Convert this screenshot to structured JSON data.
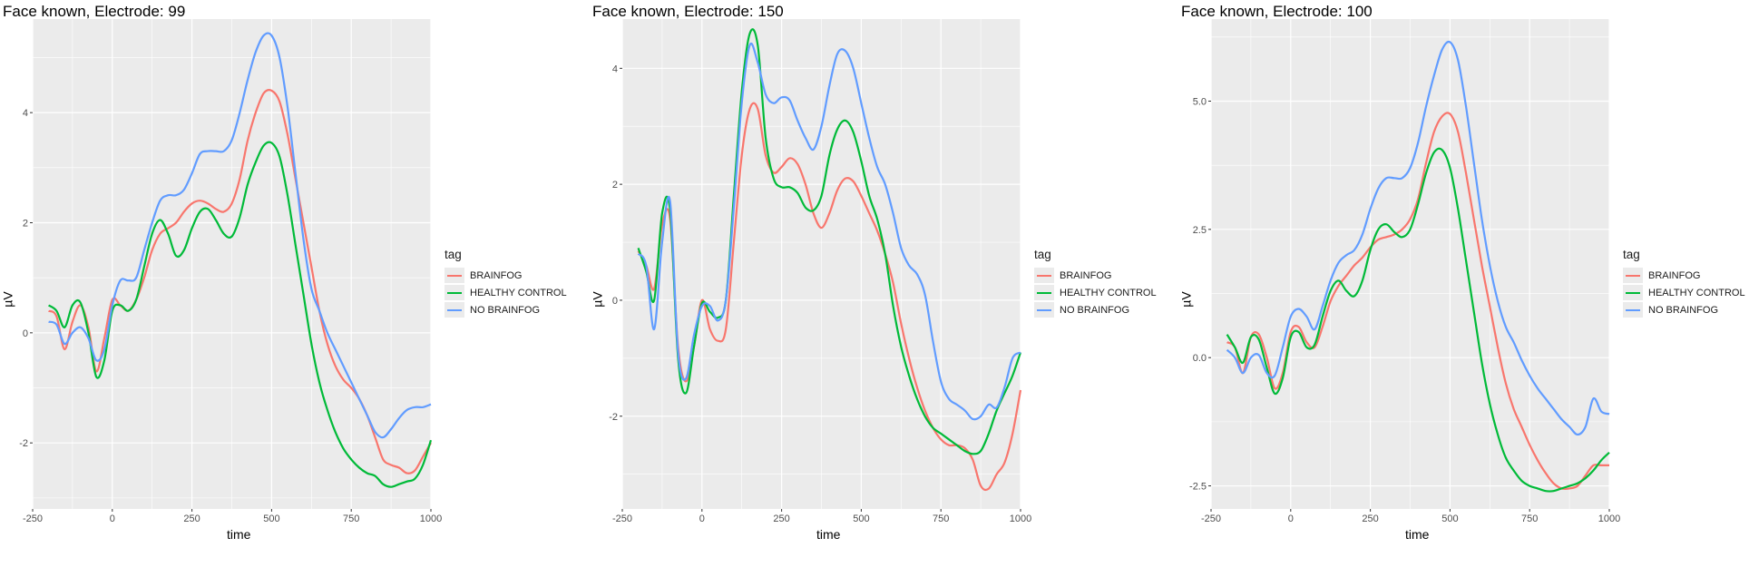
{
  "chart_data": [
    {
      "type": "line",
      "title": "Face known, Electrode: 99",
      "xlabel": "time",
      "ylabel": "µV",
      "xlim": [
        -250,
        1000
      ],
      "ylim": [
        -3.2,
        5.7
      ],
      "xticks": [
        -250,
        0,
        250,
        500,
        750,
        1000
      ],
      "yticks": [
        -2,
        0,
        2,
        4
      ],
      "grid": true,
      "legend_title": "tag",
      "legend_position": "right",
      "series": [
        {
          "name": "BRAINFOG",
          "color": "#F8766D",
          "x": [
            -200,
            -175,
            -150,
            -125,
            -100,
            -75,
            -50,
            -25,
            0,
            25,
            50,
            75,
            100,
            125,
            150,
            175,
            200,
            225,
            250,
            275,
            300,
            325,
            350,
            375,
            400,
            425,
            450,
            475,
            500,
            525,
            550,
            575,
            600,
            625,
            650,
            675,
            700,
            725,
            750,
            775,
            800,
            825,
            850,
            875,
            900,
            925,
            950,
            975,
            1000
          ],
          "y": [
            0.4,
            0.3,
            -0.3,
            0.2,
            0.5,
            0.1,
            -0.7,
            -0.1,
            0.6,
            0.5,
            0.4,
            0.6,
            1.0,
            1.5,
            1.8,
            1.9,
            2.0,
            2.2,
            2.35,
            2.4,
            2.35,
            2.25,
            2.2,
            2.35,
            2.8,
            3.5,
            4.0,
            4.35,
            4.4,
            4.2,
            3.6,
            2.8,
            2.0,
            1.2,
            0.4,
            -0.2,
            -0.6,
            -0.85,
            -1.0,
            -1.2,
            -1.5,
            -1.9,
            -2.3,
            -2.4,
            -2.45,
            -2.55,
            -2.5,
            -2.25,
            -2.0
          ]
        },
        {
          "name": "HEALTHY CONTROL",
          "color": "#00BA38",
          "x": [
            -200,
            -175,
            -150,
            -125,
            -100,
            -75,
            -50,
            -25,
            0,
            25,
            50,
            75,
            100,
            125,
            150,
            175,
            200,
            225,
            250,
            275,
            300,
            325,
            350,
            375,
            400,
            425,
            450,
            475,
            500,
            525,
            550,
            575,
            600,
            625,
            650,
            675,
            700,
            725,
            750,
            775,
            800,
            825,
            850,
            875,
            900,
            925,
            950,
            975,
            1000
          ],
          "y": [
            0.5,
            0.4,
            0.1,
            0.5,
            0.55,
            0.0,
            -0.8,
            -0.5,
            0.4,
            0.5,
            0.4,
            0.6,
            1.2,
            1.8,
            2.05,
            1.8,
            1.4,
            1.5,
            1.9,
            2.2,
            2.25,
            2.05,
            1.8,
            1.75,
            2.1,
            2.7,
            3.1,
            3.4,
            3.45,
            3.2,
            2.5,
            1.6,
            0.7,
            -0.2,
            -0.9,
            -1.4,
            -1.8,
            -2.1,
            -2.3,
            -2.45,
            -2.55,
            -2.6,
            -2.75,
            -2.8,
            -2.75,
            -2.7,
            -2.65,
            -2.4,
            -1.95
          ]
        },
        {
          "name": "NO BRAINFOG",
          "color": "#619CFF",
          "x": [
            -200,
            -175,
            -150,
            -125,
            -100,
            -75,
            -50,
            -25,
            0,
            25,
            50,
            75,
            100,
            125,
            150,
            175,
            200,
            225,
            250,
            275,
            300,
            325,
            350,
            375,
            400,
            425,
            450,
            475,
            500,
            525,
            550,
            575,
            600,
            625,
            650,
            675,
            700,
            725,
            750,
            775,
            800,
            825,
            850,
            875,
            900,
            925,
            950,
            975,
            1000
          ],
          "y": [
            0.2,
            0.15,
            -0.2,
            0.0,
            0.1,
            -0.1,
            -0.5,
            -0.3,
            0.5,
            0.95,
            0.95,
            1.0,
            1.5,
            2.0,
            2.4,
            2.5,
            2.5,
            2.6,
            2.9,
            3.25,
            3.3,
            3.3,
            3.3,
            3.5,
            4.0,
            4.6,
            5.1,
            5.4,
            5.4,
            5.0,
            4.1,
            2.9,
            1.7,
            0.8,
            0.4,
            0.0,
            -0.3,
            -0.6,
            -0.9,
            -1.2,
            -1.5,
            -1.8,
            -1.9,
            -1.75,
            -1.55,
            -1.4,
            -1.35,
            -1.35,
            -1.3
          ]
        }
      ]
    },
    {
      "type": "line",
      "title": "Face known, Electrode: 150",
      "xlabel": "time",
      "ylabel": "µV",
      "xlim": [
        -250,
        1000
      ],
      "ylim": [
        -3.6,
        4.85
      ],
      "xticks": [
        -250,
        0,
        250,
        500,
        750,
        1000
      ],
      "yticks": [
        -2,
        0,
        2,
        4
      ],
      "grid": true,
      "legend_title": "tag",
      "legend_position": "right",
      "series": [
        {
          "name": "BRAINFOG",
          "color": "#F8766D",
          "x": [
            -200,
            -175,
            -150,
            -125,
            -100,
            -75,
            -50,
            -25,
            0,
            25,
            50,
            75,
            100,
            125,
            150,
            175,
            200,
            225,
            250,
            275,
            300,
            325,
            350,
            375,
            400,
            425,
            450,
            475,
            500,
            525,
            550,
            575,
            600,
            625,
            650,
            675,
            700,
            725,
            750,
            775,
            800,
            825,
            850,
            875,
            900,
            925,
            950,
            975,
            1000
          ],
          "y": [
            0.85,
            0.6,
            0.2,
            1.3,
            1.4,
            -0.8,
            -1.4,
            -0.8,
            0.0,
            -0.5,
            -0.7,
            -0.5,
            1.0,
            2.5,
            3.3,
            3.3,
            2.5,
            2.2,
            2.3,
            2.45,
            2.35,
            2.0,
            1.5,
            1.25,
            1.5,
            1.9,
            2.1,
            2.05,
            1.8,
            1.5,
            1.2,
            0.8,
            0.3,
            -0.4,
            -1.0,
            -1.5,
            -1.9,
            -2.2,
            -2.4,
            -2.5,
            -2.5,
            -2.55,
            -2.75,
            -3.2,
            -3.25,
            -3.0,
            -2.8,
            -2.3,
            -1.55
          ]
        },
        {
          "name": "HEALTHY CONTROL",
          "color": "#00BA38",
          "x": [
            -200,
            -175,
            -150,
            -125,
            -100,
            -75,
            -50,
            -25,
            0,
            25,
            50,
            75,
            100,
            125,
            150,
            175,
            200,
            225,
            250,
            275,
            300,
            325,
            350,
            375,
            400,
            425,
            450,
            475,
            500,
            525,
            550,
            575,
            600,
            625,
            650,
            675,
            700,
            725,
            750,
            775,
            800,
            825,
            850,
            875,
            900,
            925,
            950,
            975,
            1000
          ],
          "y": [
            0.9,
            0.5,
            0.0,
            1.5,
            1.55,
            -1.0,
            -1.6,
            -0.8,
            -0.05,
            -0.2,
            -0.3,
            0.0,
            1.8,
            3.6,
            4.6,
            4.4,
            2.8,
            2.1,
            1.95,
            1.95,
            1.85,
            1.6,
            1.55,
            1.8,
            2.5,
            2.95,
            3.1,
            2.9,
            2.4,
            1.8,
            1.4,
            0.8,
            -0.1,
            -0.8,
            -1.3,
            -1.7,
            -2.0,
            -2.2,
            -2.3,
            -2.4,
            -2.5,
            -2.6,
            -2.65,
            -2.6,
            -2.3,
            -1.9,
            -1.6,
            -1.3,
            -0.9
          ]
        },
        {
          "name": "NO BRAINFOG",
          "color": "#619CFF",
          "x": [
            -200,
            -175,
            -150,
            -125,
            -100,
            -75,
            -50,
            -25,
            0,
            25,
            50,
            75,
            100,
            125,
            150,
            175,
            200,
            225,
            250,
            275,
            300,
            325,
            350,
            375,
            400,
            425,
            450,
            475,
            500,
            525,
            550,
            575,
            600,
            625,
            650,
            675,
            700,
            725,
            750,
            775,
            800,
            825,
            850,
            875,
            900,
            925,
            950,
            975,
            1000
          ],
          "y": [
            0.8,
            0.6,
            -0.5,
            1.0,
            1.7,
            -0.9,
            -1.35,
            -0.6,
            -0.1,
            -0.1,
            -0.35,
            0.0,
            1.6,
            3.4,
            4.4,
            4.1,
            3.55,
            3.4,
            3.5,
            3.45,
            3.1,
            2.8,
            2.6,
            3.0,
            3.7,
            4.25,
            4.3,
            4.0,
            3.4,
            2.8,
            2.3,
            2.0,
            1.5,
            0.9,
            0.6,
            0.45,
            0.1,
            -0.7,
            -1.4,
            -1.7,
            -1.8,
            -1.9,
            -2.05,
            -2.0,
            -1.8,
            -1.85,
            -1.5,
            -1.0,
            -0.9
          ]
        }
      ]
    },
    {
      "type": "line",
      "title": "Face known, Electrode: 100",
      "xlabel": "time",
      "ylabel": "µV",
      "xlim": [
        -250,
        1000
      ],
      "ylim": [
        -2.95,
        6.6
      ],
      "xticks": [
        -250,
        0,
        250,
        500,
        750,
        1000
      ],
      "yticks": [
        -2.5,
        0.0,
        2.5,
        5.0
      ],
      "grid": true,
      "legend_title": "tag",
      "legend_position": "right",
      "series": [
        {
          "name": "BRAINFOG",
          "color": "#F8766D",
          "x": [
            -200,
            -175,
            -150,
            -125,
            -100,
            -75,
            -50,
            -25,
            0,
            25,
            50,
            75,
            100,
            125,
            150,
            175,
            200,
            225,
            250,
            275,
            300,
            325,
            350,
            375,
            400,
            425,
            450,
            475,
            500,
            525,
            550,
            575,
            600,
            625,
            650,
            675,
            700,
            725,
            750,
            775,
            800,
            825,
            850,
            875,
            900,
            925,
            950,
            975,
            1000
          ],
          "y": [
            0.3,
            0.2,
            -0.3,
            0.4,
            0.45,
            0.0,
            -0.6,
            -0.3,
            0.5,
            0.6,
            0.3,
            0.2,
            0.6,
            1.1,
            1.4,
            1.6,
            1.8,
            1.95,
            2.15,
            2.3,
            2.35,
            2.4,
            2.5,
            2.7,
            3.1,
            3.8,
            4.4,
            4.7,
            4.75,
            4.4,
            3.6,
            2.7,
            1.8,
            1.0,
            0.2,
            -0.5,
            -1.0,
            -1.35,
            -1.7,
            -2.0,
            -2.25,
            -2.45,
            -2.55,
            -2.55,
            -2.5,
            -2.3,
            -2.1,
            -2.1,
            -2.1
          ]
        },
        {
          "name": "HEALTHY CONTROL",
          "color": "#00BA38",
          "x": [
            -200,
            -175,
            -150,
            -125,
            -100,
            -75,
            -50,
            -25,
            0,
            25,
            50,
            75,
            100,
            125,
            150,
            175,
            200,
            225,
            250,
            275,
            300,
            325,
            350,
            375,
            400,
            425,
            450,
            475,
            500,
            525,
            550,
            575,
            600,
            625,
            650,
            675,
            700,
            725,
            750,
            775,
            800,
            825,
            850,
            875,
            900,
            925,
            950,
            975,
            1000
          ],
          "y": [
            0.45,
            0.2,
            -0.1,
            0.4,
            0.35,
            -0.2,
            -0.7,
            -0.4,
            0.4,
            0.5,
            0.2,
            0.25,
            0.8,
            1.3,
            1.5,
            1.3,
            1.2,
            1.5,
            2.1,
            2.5,
            2.6,
            2.45,
            2.35,
            2.5,
            3.0,
            3.6,
            4.0,
            4.05,
            3.7,
            2.9,
            1.9,
            0.9,
            -0.1,
            -0.9,
            -1.5,
            -1.95,
            -2.2,
            -2.4,
            -2.5,
            -2.55,
            -2.6,
            -2.6,
            -2.55,
            -2.5,
            -2.45,
            -2.35,
            -2.2,
            -2.0,
            -1.85
          ]
        },
        {
          "name": "NO BRAINFOG",
          "color": "#619CFF",
          "x": [
            -200,
            -175,
            -150,
            -125,
            -100,
            -75,
            -50,
            -25,
            0,
            25,
            50,
            75,
            100,
            125,
            150,
            175,
            200,
            225,
            250,
            275,
            300,
            325,
            350,
            375,
            400,
            425,
            450,
            475,
            500,
            525,
            550,
            575,
            600,
            625,
            650,
            675,
            700,
            725,
            750,
            775,
            800,
            825,
            850,
            875,
            900,
            925,
            950,
            975,
            1000
          ],
          "y": [
            0.15,
            0.0,
            -0.3,
            0.0,
            0.05,
            -0.3,
            -0.35,
            0.2,
            0.8,
            0.95,
            0.8,
            0.55,
            1.0,
            1.5,
            1.85,
            2.0,
            2.1,
            2.4,
            2.9,
            3.3,
            3.5,
            3.5,
            3.5,
            3.7,
            4.2,
            4.9,
            5.5,
            6.0,
            6.15,
            5.8,
            4.9,
            3.8,
            2.7,
            1.8,
            1.1,
            0.6,
            0.3,
            -0.05,
            -0.35,
            -0.6,
            -0.8,
            -1.0,
            -1.2,
            -1.35,
            -1.5,
            -1.35,
            -0.8,
            -1.05,
            -1.1
          ]
        }
      ]
    }
  ]
}
